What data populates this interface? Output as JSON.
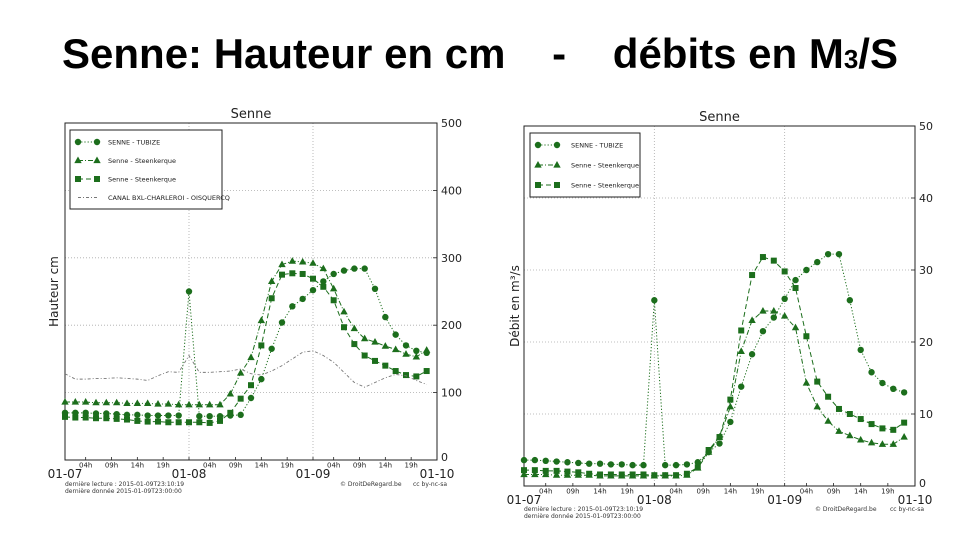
{
  "slide": {
    "title_part1": "Senne: Hauteur en cm    -    débits en M",
    "title_sub": "3",
    "title_part2": "/S"
  },
  "colors": {
    "series": "#1c6e1c",
    "canal": "#777777",
    "grid": "#aaaaaa"
  },
  "chart_data": [
    {
      "type": "line",
      "title": "Senne",
      "ylabel": "Hauteur cm",
      "xlim": [
        "2015-01-07T00:00",
        "2015-01-10T00:00"
      ],
      "ylim": [
        0,
        500
      ],
      "yticks": [
        0,
        100,
        200,
        300,
        400,
        500
      ],
      "xticks": [
        {
          "label": "01-07",
          "at": "2015-01-07T00:00",
          "major": true
        },
        {
          "label": "04h",
          "at": "2015-01-07T04:00"
        },
        {
          "label": "09h",
          "at": "2015-01-07T09:00"
        },
        {
          "label": "14h",
          "at": "2015-01-07T14:00"
        },
        {
          "label": "19h",
          "at": "2015-01-07T19:00"
        },
        {
          "label": "01-08",
          "at": "2015-01-08T00:00",
          "major": true
        },
        {
          "label": "04h",
          "at": "2015-01-08T04:00"
        },
        {
          "label": "09h",
          "at": "2015-01-08T09:00"
        },
        {
          "label": "14h",
          "at": "2015-01-08T14:00"
        },
        {
          "label": "19h",
          "at": "2015-01-08T19:00"
        },
        {
          "label": "01-09",
          "at": "2015-01-09T00:00",
          "major": true
        },
        {
          "label": "04h",
          "at": "2015-01-09T04:00"
        },
        {
          "label": "09h",
          "at": "2015-01-09T09:00"
        },
        {
          "label": "14h",
          "at": "2015-01-09T14:00"
        },
        {
          "label": "19h",
          "at": "2015-01-09T19:00"
        },
        {
          "label": "01-10",
          "at": "2015-01-10T00:00",
          "major": true
        }
      ],
      "grid": true,
      "legend_position": "top-left",
      "x": [
        "2015-01-07T00:00",
        "2015-01-07T02:00",
        "2015-01-07T04:00",
        "2015-01-07T06:00",
        "2015-01-07T08:00",
        "2015-01-07T10:00",
        "2015-01-07T12:00",
        "2015-01-07T14:00",
        "2015-01-07T16:00",
        "2015-01-07T18:00",
        "2015-01-07T20:00",
        "2015-01-07T22:00",
        "2015-01-08T00:00",
        "2015-01-08T02:00",
        "2015-01-08T04:00",
        "2015-01-08T06:00",
        "2015-01-08T08:00",
        "2015-01-08T10:00",
        "2015-01-08T12:00",
        "2015-01-08T14:00",
        "2015-01-08T16:00",
        "2015-01-08T18:00",
        "2015-01-08T20:00",
        "2015-01-08T22:00",
        "2015-01-09T00:00",
        "2015-01-09T02:00",
        "2015-01-09T04:00",
        "2015-01-09T06:00",
        "2015-01-09T08:00",
        "2015-01-09T10:00",
        "2015-01-09T12:00",
        "2015-01-09T14:00",
        "2015-01-09T16:00",
        "2015-01-09T18:00",
        "2015-01-09T20:00",
        "2015-01-09T22:00"
      ],
      "series": [
        {
          "name": "SENNE - TUBIZE",
          "marker": "circle",
          "style": "dotted",
          "values": [
            70,
            70,
            70,
            69,
            69,
            68,
            67,
            67,
            66,
            66,
            66,
            66,
            250,
            65,
            65,
            65,
            66,
            67,
            92,
            120,
            165,
            204,
            228,
            239,
            252,
            265,
            276,
            281,
            284,
            284,
            254,
            212,
            186,
            170,
            162,
            159
          ]
        },
        {
          "name": "Senne - Steenkerque",
          "marker": "triangle",
          "style": "dashdot",
          "values": [
            86,
            86,
            86,
            85,
            85,
            85,
            84,
            84,
            84,
            83,
            83,
            82,
            82,
            82,
            82,
            82,
            98,
            129,
            152,
            207,
            265,
            290,
            295,
            294,
            292,
            284,
            254,
            220,
            195,
            180,
            175,
            169,
            164,
            157,
            153,
            163
          ]
        },
        {
          "name": "Senne - Steenkerque",
          "marker": "square",
          "style": "dashed",
          "values": [
            64,
            63,
            63,
            62,
            62,
            61,
            60,
            58,
            57,
            57,
            56,
            56,
            56,
            56,
            55,
            58,
            70,
            91,
            111,
            170,
            240,
            275,
            277,
            276,
            269,
            257,
            237,
            197,
            172,
            155,
            147,
            140,
            132,
            126,
            124,
            132
          ]
        },
        {
          "name": "CANAL BXL-CHARLEROI - OISQUERCQ",
          "marker": "none",
          "style": "dashdot-gray",
          "values": [
            128,
            120,
            120,
            121,
            121,
            122,
            121,
            120,
            118,
            125,
            131,
            130,
            155,
            130,
            130,
            131,
            132,
            135,
            128,
            126,
            132,
            140,
            150,
            160,
            162,
            155,
            145,
            130,
            115,
            108,
            115,
            122,
            127,
            125,
            118,
            112
          ]
        }
      ],
      "footer": {
        "line1": "dernière lecture : 2015-01-09T23:10:19",
        "line2": "dernière donnée  2015-01-09T23:00:00",
        "credit": "© DroitDeRegard.be",
        "license": "cc by-nc-sa"
      }
    },
    {
      "type": "line",
      "title": "Senne",
      "ylabel": "Débit en m³/s",
      "xlim": [
        "2015-01-07T00:00",
        "2015-01-10T00:00"
      ],
      "ylim": [
        0,
        50
      ],
      "yticks": [
        0,
        10,
        20,
        30,
        40,
        50
      ],
      "xticks": [
        {
          "label": "01-07",
          "at": "2015-01-07T00:00",
          "major": true
        },
        {
          "label": "04h",
          "at": "2015-01-07T04:00"
        },
        {
          "label": "09h",
          "at": "2015-01-07T09:00"
        },
        {
          "label": "14h",
          "at": "2015-01-07T14:00"
        },
        {
          "label": "19h",
          "at": "2015-01-07T19:00"
        },
        {
          "label": "01-08",
          "at": "2015-01-08T00:00",
          "major": true
        },
        {
          "label": "04h",
          "at": "2015-01-08T04:00"
        },
        {
          "label": "09h",
          "at": "2015-01-08T09:00"
        },
        {
          "label": "14h",
          "at": "2015-01-08T14:00"
        },
        {
          "label": "19h",
          "at": "2015-01-08T19:00"
        },
        {
          "label": "01-09",
          "at": "2015-01-09T00:00",
          "major": true
        },
        {
          "label": "04h",
          "at": "2015-01-09T04:00"
        },
        {
          "label": "09h",
          "at": "2015-01-09T09:00"
        },
        {
          "label": "14h",
          "at": "2015-01-09T14:00"
        },
        {
          "label": "19h",
          "at": "2015-01-09T19:00"
        },
        {
          "label": "01-10",
          "at": "2015-01-10T00:00",
          "major": true
        }
      ],
      "grid": true,
      "legend_position": "top-left",
      "x": [
        "2015-01-07T00:00",
        "2015-01-07T02:00",
        "2015-01-07T04:00",
        "2015-01-07T06:00",
        "2015-01-07T08:00",
        "2015-01-07T10:00",
        "2015-01-07T12:00",
        "2015-01-07T14:00",
        "2015-01-07T16:00",
        "2015-01-07T18:00",
        "2015-01-07T20:00",
        "2015-01-07T22:00",
        "2015-01-08T00:00",
        "2015-01-08T02:00",
        "2015-01-08T04:00",
        "2015-01-08T06:00",
        "2015-01-08T08:00",
        "2015-01-08T10:00",
        "2015-01-08T12:00",
        "2015-01-08T14:00",
        "2015-01-08T16:00",
        "2015-01-08T18:00",
        "2015-01-08T20:00",
        "2015-01-08T22:00",
        "2015-01-09T00:00",
        "2015-01-09T02:00",
        "2015-01-09T04:00",
        "2015-01-09T06:00",
        "2015-01-09T08:00",
        "2015-01-09T10:00",
        "2015-01-09T12:00",
        "2015-01-09T14:00",
        "2015-01-09T16:00",
        "2015-01-09T18:00",
        "2015-01-09T20:00",
        "2015-01-09T22:00"
      ],
      "series": [
        {
          "name": "SENNE - TUBIZE",
          "marker": "circle",
          "style": "dotted",
          "values": [
            3.6,
            3.6,
            3.5,
            3.4,
            3.3,
            3.2,
            3.1,
            3.1,
            3.0,
            3.0,
            2.9,
            2.9,
            25.8,
            2.9,
            2.9,
            3.0,
            3.3,
            4.7,
            5.9,
            8.9,
            13.8,
            18.3,
            21.5,
            23.4,
            26,
            28.6,
            30,
            31.1,
            32.2,
            32.2,
            25.8,
            18.9,
            15.8,
            14.3,
            13.5,
            13
          ]
        },
        {
          "name": "Senne - Steenkerque",
          "marker": "triangle",
          "style": "dashdot",
          "values": [
            1.6,
            1.6,
            1.6,
            1.5,
            1.5,
            1.5,
            1.5,
            1.4,
            1.4,
            1.4,
            1.4,
            1.4,
            1.4,
            1.4,
            1.4,
            1.5,
            2.5,
            4.7,
            6.8,
            11,
            18.7,
            23,
            24.3,
            24.3,
            23.6,
            22,
            14.3,
            11,
            9,
            7.6,
            7,
            6.4,
            6,
            5.8,
            5.8,
            6.8
          ]
        },
        {
          "name": "Senne - Steenkerque",
          "marker": "square",
          "style": "dashed",
          "values": [
            2.2,
            2.2,
            2.1,
            2.1,
            2.0,
            1.9,
            1.7,
            1.6,
            1.6,
            1.6,
            1.6,
            1.6,
            1.5,
            1.5,
            1.5,
            1.7,
            2.6,
            5,
            6.8,
            12,
            21.6,
            29.3,
            31.8,
            31.3,
            29.8,
            27.5,
            20.8,
            14.5,
            12.4,
            10.7,
            10,
            9.3,
            8.6,
            8,
            7.8,
            8.8
          ]
        }
      ],
      "footer": {
        "line1": "dernière lecture : 2015-01-09T23:10:19",
        "line2": "dernière donnée  2015-01-09T23:00:00",
        "credit": "© DroitDeRegard.be",
        "license": "cc by-nc-sa"
      }
    }
  ]
}
